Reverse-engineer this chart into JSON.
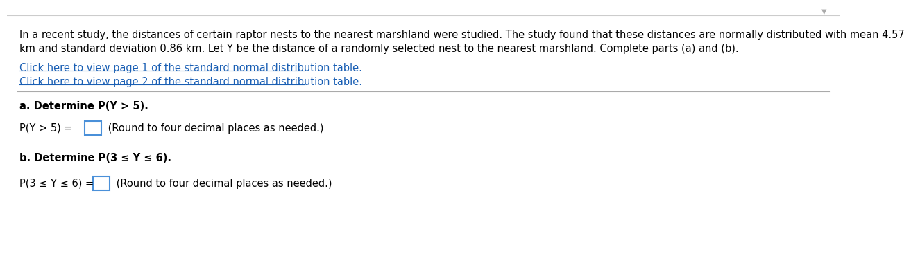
{
  "background_color": "#ffffff",
  "border_color": "#cccccc",
  "pin_icon_color": "#888888",
  "paragraph_line1": "In a recent study, the distances of certain raptor nests to the nearest marshland were studied. The study found that these distances are normally distributed with mean 4.57",
  "paragraph_line2": "km and standard deviation 0.86 km. Let Y be the distance of a randomly selected nest to the nearest marshland. Complete parts (a) and (b).",
  "link1": "Click here to view page 1 of the standard normal distribution table.",
  "link2": "Click here to view page 2 of the standard normal distribution table.",
  "link_color": "#1a5fb4",
  "separator_color": "#aaaaaa",
  "part_a_label": "a. Determine P(Y > 5).",
  "part_a_eq": "P(Y > 5) =",
  "part_a_note": " (Round to four decimal places as needed.)",
  "part_b_label": "b. Determine P(3 ≤ Y ≤ 6).",
  "part_b_eq": "P(3 ≤ Y ≤ 6) =",
  "part_b_note": " (Round to four decimal places as needed.)",
  "box_color": "#4a90d9",
  "text_color": "#000000",
  "font_size_main": 10.5,
  "font_size_link": 10.5,
  "font_size_label": 10.5,
  "font_size_eq": 10.5
}
